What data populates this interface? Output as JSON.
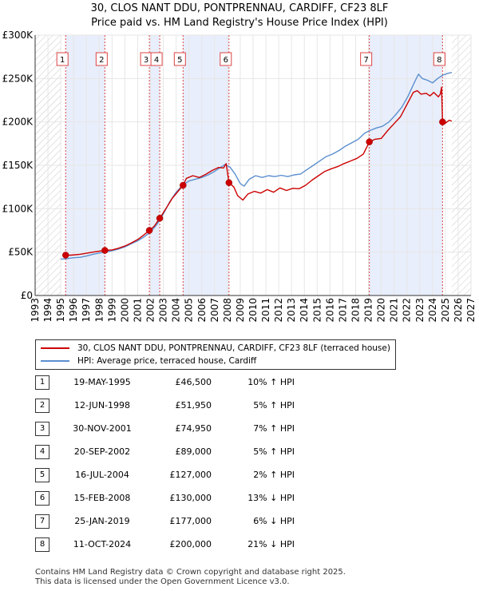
{
  "title_line1": "30, CLOS NANT DDU, PONTPRENNAU, CARDIFF, CF23 8LF",
  "title_line2": "Price paid vs. HM Land Registry's House Price Index (HPI)",
  "colors": {
    "red": "#cc0000",
    "blue": "#5b8fcf",
    "band": "#e8eefb",
    "grid": "#e6e6e6"
  },
  "chart_data": {
    "type": "line",
    "xlim": [
      1993,
      2027
    ],
    "ylim": [
      0,
      300000
    ],
    "y_ticks": [
      {
        "v": 0,
        "label": "£0"
      },
      {
        "v": 50000,
        "label": "£50K"
      },
      {
        "v": 100000,
        "label": "£100K"
      },
      {
        "v": 150000,
        "label": "£150K"
      },
      {
        "v": 200000,
        "label": "£200K"
      },
      {
        "v": 250000,
        "label": "£250K"
      },
      {
        "v": 300000,
        "label": "£300K"
      }
    ],
    "x_ticks": [
      "1993",
      "1994",
      "1995",
      "1996",
      "1997",
      "1998",
      "1999",
      "2000",
      "2001",
      "2002",
      "2003",
      "2004",
      "2005",
      "2006",
      "2007",
      "2008",
      "2009",
      "2010",
      "2011",
      "2012",
      "2013",
      "2014",
      "2015",
      "2016",
      "2017",
      "2018",
      "2019",
      "2020",
      "2021",
      "2022",
      "2023",
      "2024",
      "2025",
      "2026",
      "2027"
    ],
    "series": [
      {
        "name": "30, CLOS NANT DDU, PONTPRENNAU, CARDIFF, CF23 8LF (terraced house)",
        "points": [
          [
            1995.38,
            46500
          ],
          [
            1995.8,
            46500
          ],
          [
            1996.5,
            47500
          ],
          [
            1997.5,
            50000
          ],
          [
            1998.44,
            51950
          ],
          [
            1999.0,
            52500
          ],
          [
            1999.5,
            54500
          ],
          [
            2000.0,
            57000
          ],
          [
            2000.5,
            60500
          ],
          [
            2001.0,
            64500
          ],
          [
            2001.5,
            70000
          ],
          [
            2001.91,
            74950
          ],
          [
            2002.3,
            80000
          ],
          [
            2002.72,
            89000
          ],
          [
            2003.2,
            100000
          ],
          [
            2003.7,
            112000
          ],
          [
            2004.2,
            121000
          ],
          [
            2004.54,
            127000
          ],
          [
            2004.8,
            135000
          ],
          [
            2005.3,
            138000
          ],
          [
            2005.8,
            136000
          ],
          [
            2006.3,
            139500
          ],
          [
            2006.8,
            144000
          ],
          [
            2007.3,
            147500
          ],
          [
            2007.7,
            147000
          ],
          [
            2007.9,
            152000
          ],
          [
            2008.12,
            130000
          ],
          [
            2008.5,
            125000
          ],
          [
            2008.8,
            115000
          ],
          [
            2009.2,
            110000
          ],
          [
            2009.6,
            117000
          ],
          [
            2010.1,
            120000
          ],
          [
            2010.6,
            118000
          ],
          [
            2011.1,
            122000
          ],
          [
            2011.6,
            119000
          ],
          [
            2012.1,
            124000
          ],
          [
            2012.6,
            121000
          ],
          [
            2013.1,
            123500
          ],
          [
            2013.6,
            123000
          ],
          [
            2014.1,
            127000
          ],
          [
            2014.6,
            133000
          ],
          [
            2015.1,
            138000
          ],
          [
            2015.6,
            143000
          ],
          [
            2016.1,
            146000
          ],
          [
            2016.6,
            148500
          ],
          [
            2017.1,
            152000
          ],
          [
            2017.6,
            155000
          ],
          [
            2018.1,
            158000
          ],
          [
            2018.6,
            163000
          ],
          [
            2019.07,
            177000
          ],
          [
            2019.5,
            180000
          ],
          [
            2020.0,
            181000
          ],
          [
            2020.5,
            190000
          ],
          [
            2021.0,
            198000
          ],
          [
            2021.5,
            206000
          ],
          [
            2022.0,
            220000
          ],
          [
            2022.5,
            234000
          ],
          [
            2022.8,
            236000
          ],
          [
            2023.1,
            232000
          ],
          [
            2023.5,
            233000
          ],
          [
            2023.8,
            230000
          ],
          [
            2024.1,
            234000
          ],
          [
            2024.45,
            229000
          ],
          [
            2024.6,
            232000
          ],
          [
            2024.7,
            240000
          ],
          [
            2024.78,
            200000
          ],
          [
            2025.0,
            198500
          ],
          [
            2025.3,
            202000
          ],
          [
            2025.5,
            201000
          ]
        ]
      },
      {
        "name": "HPI: Average price, terraced house, Cardiff",
        "points": [
          [
            1995.0,
            42000
          ],
          [
            1995.5,
            42500
          ],
          [
            1996.0,
            43500
          ],
          [
            1996.5,
            44000
          ],
          [
            1997.0,
            45500
          ],
          [
            1997.5,
            47500
          ],
          [
            1998.0,
            49000
          ],
          [
            1998.5,
            50000
          ],
          [
            1999.0,
            51500
          ],
          [
            1999.5,
            53500
          ],
          [
            2000.0,
            56000
          ],
          [
            2000.5,
            59500
          ],
          [
            2001.0,
            63000
          ],
          [
            2001.5,
            67500
          ],
          [
            2002.0,
            73000
          ],
          [
            2002.5,
            82000
          ],
          [
            2003.0,
            94000
          ],
          [
            2003.5,
            108000
          ],
          [
            2004.0,
            119000
          ],
          [
            2004.5,
            127000
          ],
          [
            2005.0,
            132000
          ],
          [
            2005.5,
            134000
          ],
          [
            2006.0,
            136000
          ],
          [
            2006.5,
            139000
          ],
          [
            2007.0,
            143000
          ],
          [
            2007.5,
            148000
          ],
          [
            2007.8,
            151000
          ],
          [
            2008.2,
            148000
          ],
          [
            2008.6,
            140000
          ],
          [
            2009.0,
            129000
          ],
          [
            2009.3,
            126000
          ],
          [
            2009.7,
            134000
          ],
          [
            2010.2,
            138000
          ],
          [
            2010.7,
            136000
          ],
          [
            2011.2,
            138000
          ],
          [
            2011.7,
            137000
          ],
          [
            2012.2,
            138500
          ],
          [
            2012.7,
            137000
          ],
          [
            2013.2,
            139000
          ],
          [
            2013.7,
            140000
          ],
          [
            2014.2,
            145000
          ],
          [
            2014.7,
            150000
          ],
          [
            2015.2,
            155000
          ],
          [
            2015.7,
            160000
          ],
          [
            2016.2,
            163000
          ],
          [
            2016.7,
            167000
          ],
          [
            2017.2,
            172000
          ],
          [
            2017.7,
            176000
          ],
          [
            2018.2,
            180000
          ],
          [
            2018.7,
            187000
          ],
          [
            2019.1,
            190000
          ],
          [
            2019.6,
            193000
          ],
          [
            2020.1,
            195000
          ],
          [
            2020.6,
            200000
          ],
          [
            2021.1,
            208000
          ],
          [
            2021.6,
            217000
          ],
          [
            2022.1,
            230000
          ],
          [
            2022.6,
            246000
          ],
          [
            2022.9,
            255000
          ],
          [
            2023.2,
            250000
          ],
          [
            2023.6,
            248000
          ],
          [
            2024.0,
            245000
          ],
          [
            2024.4,
            250000
          ],
          [
            2024.8,
            254000
          ],
          [
            2025.2,
            256000
          ],
          [
            2025.5,
            257000
          ]
        ]
      }
    ],
    "transactions": [
      {
        "num": "1",
        "date": "19-MAY-1995",
        "price": "£46,500",
        "hpi": "10% ↑ HPI",
        "x": 1995.38,
        "y": 46500
      },
      {
        "num": "2",
        "date": "12-JUN-1998",
        "price": "£51,950",
        "hpi": "5% ↑ HPI",
        "x": 1998.44,
        "y": 51950
      },
      {
        "num": "3",
        "date": "30-NOV-2001",
        "price": "£74,950",
        "hpi": "7% ↑ HPI",
        "x": 2001.91,
        "y": 74950
      },
      {
        "num": "4",
        "date": "20-SEP-2002",
        "price": "£89,000",
        "hpi": "5% ↑ HPI",
        "x": 2002.72,
        "y": 89000
      },
      {
        "num": "5",
        "date": "16-JUL-2004",
        "price": "£127,000",
        "hpi": "2% ↑ HPI",
        "x": 2004.54,
        "y": 127000
      },
      {
        "num": "6",
        "date": "15-FEB-2008",
        "price": "£130,000",
        "hpi": "13% ↓ HPI",
        "x": 2008.12,
        "y": 130000
      },
      {
        "num": "7",
        "date": "25-JAN-2019",
        "price": "£177,000",
        "hpi": "6% ↓ HPI",
        "x": 2019.07,
        "y": 177000
      },
      {
        "num": "8",
        "date": "11-OCT-2024",
        "price": "£200,000",
        "hpi": "21% ↓ HPI",
        "x": 2024.78,
        "y": 200000
      }
    ],
    "bands": [
      [
        1995.38,
        1998.44
      ],
      [
        2001.91,
        2002.72
      ],
      [
        2004.54,
        2008.12
      ],
      [
        2019.07,
        2024.78
      ]
    ],
    "hatch_before": 1995.0,
    "hatch_after": 2025.5
  },
  "legend": {
    "red_label": "30, CLOS NANT DDU, PONTPRENNAU, CARDIFF, CF23 8LF (terraced house)",
    "blue_label": "HPI: Average price, terraced house, Cardiff"
  },
  "footer": {
    "line1": "Contains HM Land Registry data © Crown copyright and database right 2025.",
    "line2": "This data is licensed under the Open Government Licence v3.0."
  }
}
